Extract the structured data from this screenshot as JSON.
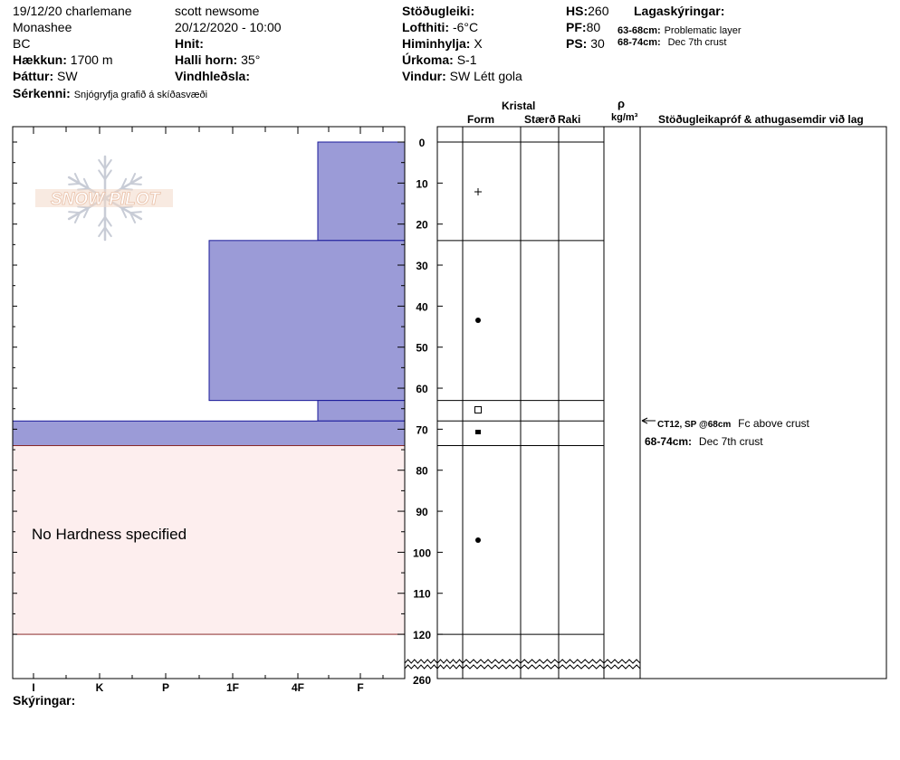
{
  "header": {
    "date_place": "19/12/20 charlemane",
    "range": "Monashee",
    "region": "BC",
    "elevation_label": "Hækkun:",
    "elevation_value": "1700 m",
    "aspect_label": "Þáttur:",
    "aspect_value": "SW",
    "features_label": "Sérkenni:",
    "features_value": "Snjógryfja grafið á skíðasvæði",
    "observer": "scott newsome",
    "datetime": "20/12/2020 - 10:00",
    "coords_label": "Hnit:",
    "slope_label": "Halli horn:",
    "slope_value": "35°",
    "wind_loading_label": "Vindhleðsla:",
    "stability_label": "Stöðugleiki:",
    "air_temp_label": "Lofthiti:",
    "air_temp_value": "-6°C",
    "sky_label": "Himinhylja:",
    "sky_value": "X",
    "precip_label": "Úrkoma:",
    "precip_value": "S-1",
    "wind_label": "Vindur:",
    "wind_value": "SW Létt gola",
    "hs_label": "HS:",
    "hs_value": "260",
    "pf_label": "PF:",
    "pf_value": "80",
    "ps_label": "PS:",
    "ps_value": "30",
    "layer_notes_label": "Lagaskýringar:",
    "layer_notes": [
      {
        "range": "63-68cm:",
        "text": "Problematic layer"
      },
      {
        "range": "68-74cm:",
        "text": "Dec 7th crust"
      }
    ]
  },
  "columns": {
    "kristal": "Kristal",
    "form": "Form",
    "staerd": "Stærð",
    "raki": "Raki",
    "rho": "ρ",
    "density_unit": "kg/m³",
    "tests": "Stöðugleikapróf & athugasemdir við lag"
  },
  "comments": [
    {
      "label": "CT12, SP @68cm",
      "text": "Fc above crust"
    },
    {
      "label": "68-74cm:",
      "text": "Dec 7th crust"
    }
  ],
  "legend_label": "Skýringar:",
  "logo_text": "SNOW PILOT",
  "no_hardness_text": "No Hardness specified",
  "colors": {
    "layer_fill": "#9b9bd7",
    "layer_stroke": "#1a1a9a",
    "no_hardness_fill": "#fdeeee",
    "no_hardness_stroke": "#8a2a2a",
    "logo": "#c8ccd6"
  },
  "chart_data": {
    "type": "bar",
    "orientation": "horizontal",
    "hardness_ticks": [
      "I",
      "K",
      "P",
      "1F",
      "4F",
      "F"
    ],
    "depth_ticks": [
      0,
      10,
      20,
      30,
      40,
      50,
      60,
      70,
      80,
      90,
      100,
      110,
      120
    ],
    "bottom_tick": 260,
    "layers": [
      {
        "top": 0,
        "bottom": 24,
        "hardness": "F",
        "form": "+"
      },
      {
        "top": 24,
        "bottom": 63,
        "hardness": "1F-4F",
        "form": "●"
      },
      {
        "top": 63,
        "bottom": 68,
        "hardness": "F",
        "form": "□"
      },
      {
        "top": 68,
        "bottom": 74,
        "hardness": "I",
        "form": "■"
      },
      {
        "top": 74,
        "bottom": 120,
        "hardness": "none",
        "form": "●"
      }
    ]
  }
}
